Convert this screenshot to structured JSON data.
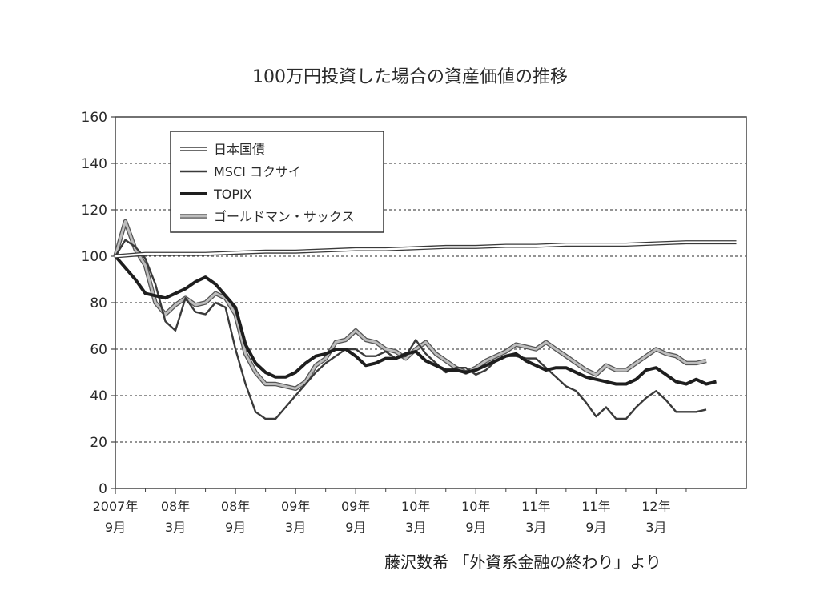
{
  "chart_data": {
    "type": "line",
    "title": "100万円投資した場合の資産価値の推移",
    "source": "藤沢数希 「外資系金融の終わり」より",
    "ylim": [
      0,
      160
    ],
    "yticks": [
      0,
      20,
      40,
      60,
      80,
      100,
      120,
      140,
      160
    ],
    "grid": "horizontal-dashed",
    "legend_position": "top-left",
    "xlim": [
      0,
      63
    ],
    "xticks": [
      {
        "line1": "2007年",
        "line2": "9月",
        "x": 0
      },
      {
        "line1": "08年",
        "line2": "3月",
        "x": 6
      },
      {
        "line1": "08年",
        "line2": "9月",
        "x": 12
      },
      {
        "line1": "09年",
        "line2": "3月",
        "x": 18
      },
      {
        "line1": "09年",
        "line2": "9月",
        "x": 24
      },
      {
        "line1": "10年",
        "line2": "3月",
        "x": 30
      },
      {
        "line1": "10年",
        "line2": "9月",
        "x": 36
      },
      {
        "line1": "11年",
        "line2": "3月",
        "x": 42
      },
      {
        "line1": "11年",
        "line2": "9月",
        "x": 48
      },
      {
        "line1": "12年",
        "line2": "3月",
        "x": 54
      }
    ],
    "series": [
      {
        "name": "日本国債",
        "style": "outline",
        "color": "#3a3a3a",
        "points": [
          [
            0,
            100
          ],
          [
            3,
            101
          ],
          [
            6,
            101
          ],
          [
            9,
            101
          ],
          [
            12,
            101.5
          ],
          [
            15,
            102
          ],
          [
            18,
            102
          ],
          [
            21,
            102.5
          ],
          [
            24,
            103
          ],
          [
            27,
            103
          ],
          [
            30,
            103.5
          ],
          [
            33,
            104
          ],
          [
            36,
            104
          ],
          [
            39,
            104.5
          ],
          [
            42,
            104.5
          ],
          [
            45,
            105
          ],
          [
            48,
            105
          ],
          [
            51,
            105
          ],
          [
            54,
            105.5
          ],
          [
            57,
            106
          ],
          [
            60,
            106
          ],
          [
            62,
            106
          ]
        ]
      },
      {
        "name": "MSCI コクサイ",
        "style": "solid",
        "color": "#3a3a3a",
        "points": [
          [
            0,
            100
          ],
          [
            1,
            107
          ],
          [
            2,
            104
          ],
          [
            3,
            99
          ],
          [
            4,
            88
          ],
          [
            5,
            72
          ],
          [
            6,
            68
          ],
          [
            7,
            82
          ],
          [
            8,
            76
          ],
          [
            9,
            75
          ],
          [
            10,
            80
          ],
          [
            11,
            78
          ],
          [
            12,
            60
          ],
          [
            13,
            45
          ],
          [
            14,
            33
          ],
          [
            15,
            30
          ],
          [
            16,
            30
          ],
          [
            17,
            35
          ],
          [
            18,
            40
          ],
          [
            19,
            45
          ],
          [
            20,
            50
          ],
          [
            21,
            54
          ],
          [
            22,
            57
          ],
          [
            23,
            60
          ],
          [
            24,
            60
          ],
          [
            25,
            57
          ],
          [
            26,
            57
          ],
          [
            27,
            59
          ],
          [
            28,
            56
          ],
          [
            29,
            57
          ],
          [
            30,
            64
          ],
          [
            31,
            58
          ],
          [
            32,
            54
          ],
          [
            33,
            50
          ],
          [
            34,
            52
          ],
          [
            35,
            52
          ],
          [
            36,
            49
          ],
          [
            37,
            51
          ],
          [
            38,
            55
          ],
          [
            39,
            57
          ],
          [
            40,
            57
          ],
          [
            41,
            56
          ],
          [
            42,
            56
          ],
          [
            43,
            52
          ],
          [
            44,
            48
          ],
          [
            45,
            44
          ],
          [
            46,
            42
          ],
          [
            47,
            37
          ],
          [
            48,
            31
          ],
          [
            49,
            35
          ],
          [
            50,
            30
          ],
          [
            51,
            30
          ],
          [
            52,
            35
          ],
          [
            53,
            39
          ],
          [
            54,
            42
          ],
          [
            55,
            38
          ],
          [
            56,
            33
          ],
          [
            57,
            33
          ],
          [
            58,
            33
          ],
          [
            59,
            34
          ]
        ]
      },
      {
        "name": "TOPIX",
        "style": "thick",
        "color": "#1e1e1e",
        "points": [
          [
            0,
            100
          ],
          [
            1,
            95
          ],
          [
            2,
            90
          ],
          [
            3,
            84
          ],
          [
            4,
            83
          ],
          [
            5,
            82
          ],
          [
            6,
            84
          ],
          [
            7,
            86
          ],
          [
            8,
            89
          ],
          [
            9,
            91
          ],
          [
            10,
            88
          ],
          [
            11,
            83
          ],
          [
            12,
            78
          ],
          [
            13,
            62
          ],
          [
            14,
            54
          ],
          [
            15,
            50
          ],
          [
            16,
            48
          ],
          [
            17,
            48
          ],
          [
            18,
            50
          ],
          [
            19,
            54
          ],
          [
            20,
            57
          ],
          [
            21,
            58
          ],
          [
            22,
            60
          ],
          [
            23,
            60
          ],
          [
            24,
            57
          ],
          [
            25,
            53
          ],
          [
            26,
            54
          ],
          [
            27,
            56
          ],
          [
            28,
            56
          ],
          [
            29,
            58
          ],
          [
            30,
            59
          ],
          [
            31,
            55
          ],
          [
            32,
            53
          ],
          [
            33,
            51
          ],
          [
            34,
            51
          ],
          [
            35,
            50
          ],
          [
            36,
            51
          ],
          [
            37,
            53
          ],
          [
            38,
            55
          ],
          [
            39,
            57
          ],
          [
            40,
            58
          ],
          [
            41,
            55
          ],
          [
            42,
            53
          ],
          [
            43,
            51
          ],
          [
            44,
            52
          ],
          [
            45,
            52
          ],
          [
            46,
            50
          ],
          [
            47,
            48
          ],
          [
            48,
            47
          ],
          [
            49,
            46
          ],
          [
            50,
            45
          ],
          [
            51,
            45
          ],
          [
            52,
            47
          ],
          [
            53,
            51
          ],
          [
            54,
            52
          ],
          [
            55,
            49
          ],
          [
            56,
            46
          ],
          [
            57,
            45
          ],
          [
            58,
            47
          ],
          [
            59,
            45
          ],
          [
            60,
            46
          ]
        ]
      },
      {
        "name": "ゴールドマン・サックス",
        "style": "gray",
        "color": "#999999",
        "points": [
          [
            0,
            100
          ],
          [
            1,
            115
          ],
          [
            2,
            103
          ],
          [
            3,
            96
          ],
          [
            4,
            80
          ],
          [
            5,
            75
          ],
          [
            6,
            79
          ],
          [
            7,
            82
          ],
          [
            8,
            79
          ],
          [
            9,
            80
          ],
          [
            10,
            84
          ],
          [
            11,
            82
          ],
          [
            12,
            75
          ],
          [
            13,
            58
          ],
          [
            14,
            50
          ],
          [
            15,
            45
          ],
          [
            16,
            45
          ],
          [
            17,
            44
          ],
          [
            18,
            43
          ],
          [
            19,
            46
          ],
          [
            20,
            53
          ],
          [
            21,
            56
          ],
          [
            22,
            63
          ],
          [
            23,
            64
          ],
          [
            24,
            68
          ],
          [
            25,
            64
          ],
          [
            26,
            63
          ],
          [
            27,
            60
          ],
          [
            28,
            59
          ],
          [
            29,
            56
          ],
          [
            30,
            60
          ],
          [
            31,
            63
          ],
          [
            32,
            58
          ],
          [
            33,
            55
          ],
          [
            34,
            52
          ],
          [
            35,
            50
          ],
          [
            36,
            52
          ],
          [
            37,
            55
          ],
          [
            38,
            57
          ],
          [
            39,
            59
          ],
          [
            40,
            62
          ],
          [
            41,
            61
          ],
          [
            42,
            60
          ],
          [
            43,
            63
          ],
          [
            44,
            60
          ],
          [
            45,
            57
          ],
          [
            46,
            54
          ],
          [
            47,
            51
          ],
          [
            48,
            49
          ],
          [
            49,
            53
          ],
          [
            50,
            51
          ],
          [
            51,
            51
          ],
          [
            52,
            54
          ],
          [
            53,
            57
          ],
          [
            54,
            60
          ],
          [
            55,
            58
          ],
          [
            56,
            57
          ],
          [
            57,
            54
          ],
          [
            58,
            54
          ],
          [
            59,
            55
          ]
        ]
      }
    ]
  }
}
